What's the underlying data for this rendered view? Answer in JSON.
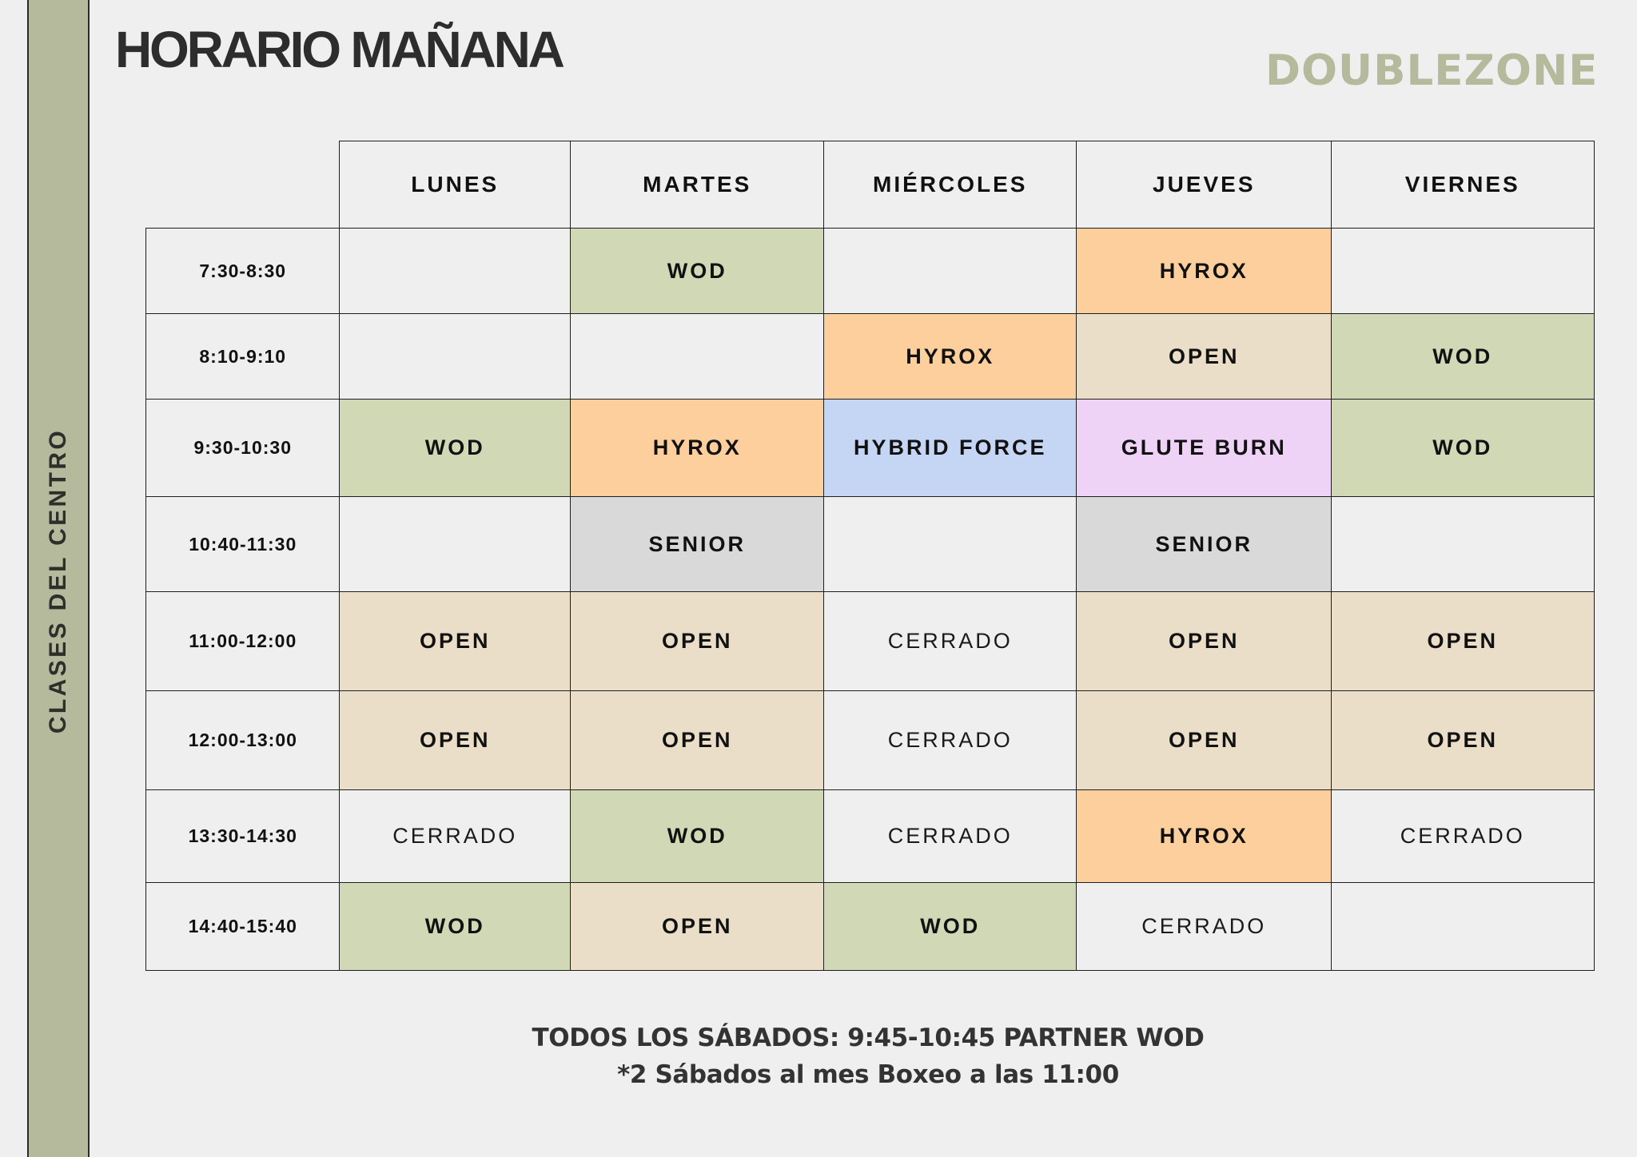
{
  "header": {
    "title": "HORARIO MAÑANA",
    "logo": "DOUBLEZONE"
  },
  "sidebar": {
    "label": "CLASES DEL CENTRO"
  },
  "colors": {
    "page_bg": "#efefef",
    "sidebar": "#b5ba9c",
    "logo": "#b5ba9c",
    "WOD": "#d1d8b6",
    "HYROX": "#fdcf9d",
    "OPEN": "#ebdec8",
    "HYBRID FORCE": "#c5d5f4",
    "GLUTE BURN": "#eed3f6",
    "SENIOR": "#d9d9d9",
    "CERRADO": "#efefef",
    "empty": "#efefef"
  },
  "schedule": {
    "days": [
      "LUNES",
      "MARTES",
      "MIÉRCOLES",
      "JUEVES",
      "VIERNES"
    ],
    "rows": [
      {
        "time": "7:30-8:30",
        "cells": [
          "",
          "WOD",
          "",
          "HYROX",
          ""
        ]
      },
      {
        "time": "8:10-9:10",
        "cells": [
          "",
          "",
          "HYROX",
          "OPEN",
          "WOD"
        ]
      },
      {
        "time": "9:30-10:30",
        "cells": [
          "WOD",
          "HYROX",
          "HYBRID FORCE",
          "GLUTE BURN",
          "WOD"
        ]
      },
      {
        "time": "10:40-11:30",
        "cells": [
          "",
          "SENIOR",
          "",
          "SENIOR",
          ""
        ]
      },
      {
        "time": "11:00-12:00",
        "cells": [
          "OPEN",
          "OPEN",
          "CERRADO",
          "OPEN",
          "OPEN"
        ]
      },
      {
        "time": "12:00-13:00",
        "cells": [
          "OPEN",
          "OPEN",
          "CERRADO",
          "OPEN",
          "OPEN"
        ]
      },
      {
        "time": "13:30-14:30",
        "cells": [
          "CERRADO",
          "WOD",
          "CERRADO",
          "HYROX",
          "CERRADO"
        ]
      },
      {
        "time": "14:40-15:40",
        "cells": [
          "WOD",
          "OPEN",
          "WOD",
          "CERRADO",
          ""
        ]
      }
    ]
  },
  "footer": {
    "line1": "TODOS LOS SÁBADOS: 9:45-10:45 PARTNER WOD",
    "line2": "*2 Sábados al mes Boxeo a las 11:00"
  }
}
